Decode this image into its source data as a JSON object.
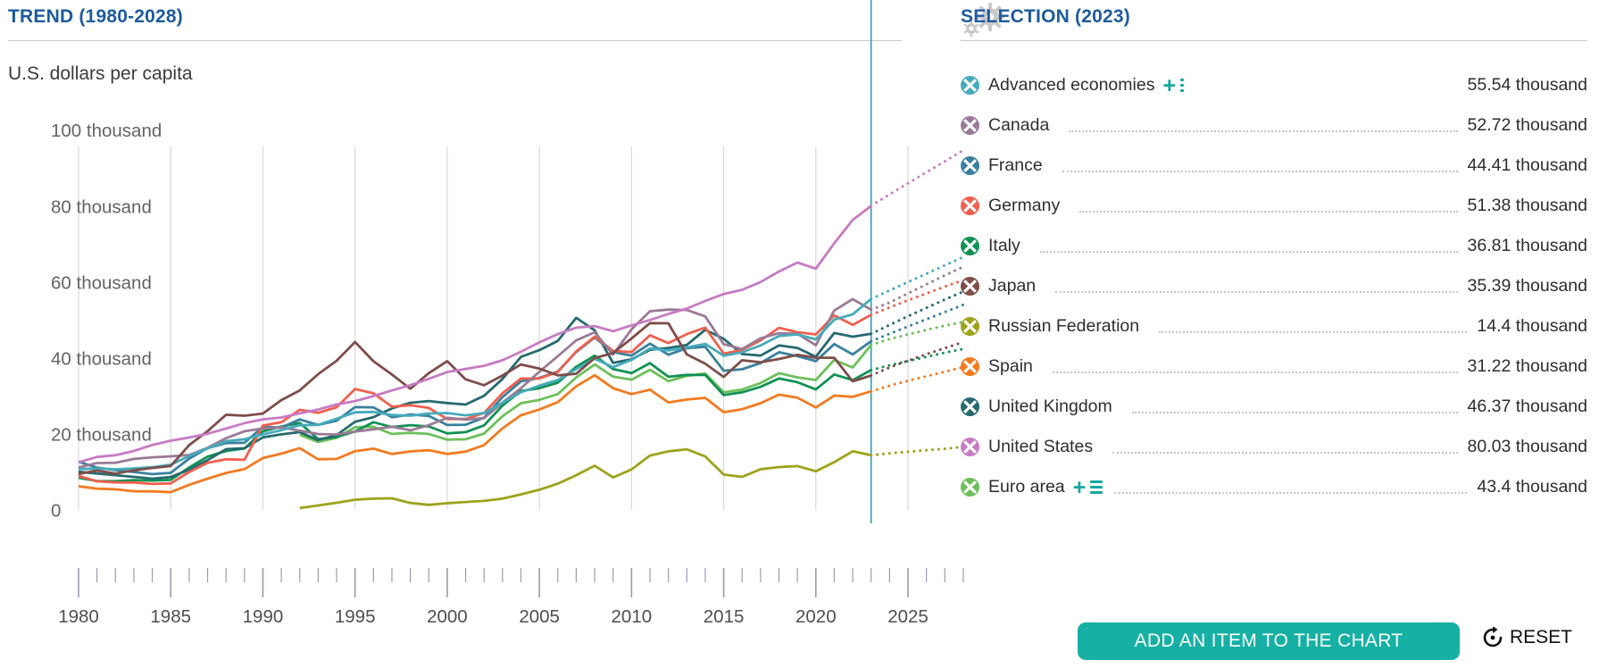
{
  "header": {
    "trend_title": "TREND (1980-2028)",
    "selection_title": "SELECTION (2023)",
    "unit_label": "U.S. dollars per capita"
  },
  "footer": {
    "add_button_label": "ADD AN ITEM TO THE CHART",
    "reset_label": "RESET"
  },
  "accent_colors": {
    "title_blue": "#1d5b9f",
    "teal_button": "#16b1a4",
    "current_year_line": "#2d9cbb",
    "gridline": "#d9d9d9",
    "tick": "#9b9bb0"
  },
  "selection": {
    "items": [
      {
        "name": "Advanced economies",
        "value": "55.54 thousand",
        "color": "#46abbc",
        "icons": [
          "plus",
          "kebab"
        ],
        "leader": false
      },
      {
        "name": "Canada",
        "value": "52.72 thousand",
        "color": "#9a7a96",
        "icons": [],
        "leader": true
      },
      {
        "name": "France",
        "value": "44.41 thousand",
        "color": "#39809e",
        "icons": [],
        "leader": true
      },
      {
        "name": "Germany",
        "value": "51.38 thousand",
        "color": "#f15f4f",
        "icons": [],
        "leader": true
      },
      {
        "name": "Italy",
        "value": "36.81 thousand",
        "color": "#109255",
        "icons": [],
        "leader": true
      },
      {
        "name": "Japan",
        "value": "35.39 thousand",
        "color": "#7e4e4a",
        "icons": [],
        "leader": true
      },
      {
        "name": "Russian Federation",
        "value": "14.4 thousand",
        "color": "#9ea31b",
        "icons": [],
        "leader": true
      },
      {
        "name": "Spain",
        "value": "31.22 thousand",
        "color": "#f47a1f",
        "icons": [],
        "leader": true
      },
      {
        "name": "United Kingdom",
        "value": "46.37 thousand",
        "color": "#266a6e",
        "icons": [],
        "leader": true
      },
      {
        "name": "United States",
        "value": "80.03 thousand",
        "color": "#c77bc3",
        "icons": [],
        "leader": true
      },
      {
        "name": "Euro area",
        "value": "43.4 thousand",
        "color": "#6dbf59",
        "icons": [
          "plus",
          "list"
        ],
        "leader": true
      }
    ]
  },
  "chart_data": {
    "type": "line",
    "title": "TREND (1980-2028)",
    "ylabel": "U.S. dollars per capita",
    "unit": "thousand U.S. dollars per capita",
    "ylim": [
      0,
      100
    ],
    "y_ticks": [
      100,
      80,
      60,
      40,
      20,
      0
    ],
    "y_tick_labels": [
      "100 thousand",
      "80 thousand",
      "60 thousand",
      "40 thousand",
      "20 thousand",
      "0"
    ],
    "x_range": [
      1980,
      2028
    ],
    "x_tick_labels": [
      1980,
      1985,
      1990,
      1995,
      2000,
      2005,
      2010,
      2015,
      2020,
      2025
    ],
    "gridline_years": [
      1980,
      1985,
      1990,
      1995,
      2000,
      2005,
      2010,
      2015,
      2020,
      2025
    ],
    "current_year": 2023,
    "forecast_note": "dotted lines after 2023 are projections to 2028",
    "series": [
      {
        "name": "Russian Federation",
        "color": "#9ea31b",
        "start_year": 1992,
        "values": [
          0.49,
          1.17,
          1.87,
          2.67,
          2.98,
          3.06,
          1.84,
          1.33,
          1.77,
          2.1,
          2.37,
          2.97,
          4.1,
          5.32,
          6.92,
          9.15,
          11.63,
          8.56,
          10.67,
          14.31,
          15.42,
          15.97,
          14.09,
          9.31,
          8.7,
          10.72,
          11.29,
          11.54,
          10.17,
          12.57,
          15.44,
          14.4,
          14.9,
          15.3,
          15.7,
          16.1,
          16.6
        ]
      },
      {
        "name": "Euro area",
        "color": "#6dbf59",
        "start_year": 1992,
        "values": [
          19.8,
          17.9,
          19.0,
          21.8,
          21.9,
          20.0,
          20.3,
          20.0,
          18.5,
          18.6,
          20.1,
          24.7,
          28.1,
          29.0,
          30.5,
          34.9,
          38.3,
          35.1,
          34.3,
          36.9,
          33.9,
          35.3,
          35.9,
          31.0,
          31.7,
          33.4,
          36.0,
          34.9,
          34.2,
          39.5,
          37.5,
          43.4,
          45.0,
          46.2,
          47.4,
          48.5,
          49.5
        ]
      },
      {
        "name": "Spain",
        "color": "#f47a1f",
        "start_year": 1980,
        "values": [
          6.23,
          5.59,
          5.42,
          4.92,
          4.89,
          4.68,
          6.61,
          8.23,
          9.74,
          10.74,
          13.65,
          14.81,
          16.26,
          13.34,
          13.42,
          15.47,
          16.12,
          14.73,
          15.39,
          15.72,
          14.75,
          15.36,
          17.07,
          21.5,
          24.92,
          26.42,
          28.39,
          32.55,
          35.45,
          32.04,
          30.5,
          31.68,
          28.32,
          29.06,
          29.5,
          25.73,
          26.52,
          28.1,
          30.35,
          29.56,
          26.96,
          30.1,
          29.8,
          31.22,
          32.7,
          34.0,
          35.2,
          36.4,
          37.6
        ]
      },
      {
        "name": "Italy",
        "color": "#109255",
        "start_year": 1980,
        "values": [
          8.46,
          7.62,
          7.56,
          7.85,
          7.74,
          7.91,
          11.2,
          14.03,
          15.53,
          16.17,
          20.69,
          21.96,
          22.91,
          18.65,
          19.18,
          20.66,
          23.08,
          21.83,
          22.32,
          21.99,
          20.14,
          20.48,
          22.27,
          27.47,
          31.32,
          32.04,
          33.5,
          37.7,
          40.64,
          37.08,
          36.03,
          38.65,
          35.05,
          35.55,
          35.56,
          30.23,
          30.97,
          32.41,
          34.62,
          33.63,
          31.71,
          35.66,
          34.16,
          36.81,
          38.1,
          39.2,
          40.3,
          41.4,
          42.4
        ]
      },
      {
        "name": "United Kingdom",
        "color": "#266a6e",
        "start_year": 1980,
        "values": [
          10.03,
          9.6,
          9.15,
          8.69,
          8.22,
          8.65,
          10.61,
          13.12,
          15.99,
          16.24,
          19.1,
          19.9,
          20.49,
          18.39,
          19.71,
          23.21,
          24.44,
          26.73,
          28.21,
          28.67,
          28.15,
          27.75,
          30.06,
          34.5,
          40.29,
          42.07,
          44.5,
          50.57,
          47.29,
          38.71,
          39.69,
          42.15,
          42.66,
          43.45,
          47.42,
          45.04,
          41.06,
          40.62,
          43.31,
          42.66,
          40.32,
          46.59,
          45.61,
          46.37,
          48.7,
          51.0,
          53.2,
          55.4,
          57.5
        ]
      },
      {
        "name": "France",
        "color": "#39809e",
        "start_year": 1980,
        "values": [
          12.72,
          11.13,
          10.48,
          9.99,
          9.42,
          9.76,
          13.51,
          16.27,
          17.6,
          17.69,
          21.87,
          21.68,
          23.81,
          22.38,
          23.5,
          27.06,
          26.99,
          24.4,
          25.13,
          24.76,
          22.36,
          22.43,
          24.28,
          29.69,
          33.86,
          34.76,
          36.44,
          41.6,
          45.41,
          41.57,
          40.64,
          43.79,
          40.87,
          42.59,
          42.95,
          36.65,
          37.04,
          38.69,
          41.53,
          40.49,
          39.18,
          43.66,
          40.93,
          44.41,
          46.4,
          48.3,
          50.2,
          52.1,
          54.0
        ]
      },
      {
        "name": "Germany",
        "color": "#f15f4f",
        "start_year": 1980,
        "values": [
          8.95,
          7.52,
          7.25,
          7.22,
          6.84,
          6.99,
          9.99,
          12.41,
          13.34,
          13.2,
          22.22,
          23.08,
          26.36,
          25.56,
          27.05,
          31.83,
          30.71,
          27.19,
          27.55,
          26.86,
          23.93,
          23.94,
          25.53,
          30.73,
          34.58,
          34.61,
          36.32,
          41.74,
          45.61,
          41.86,
          41.57,
          46.0,
          43.93,
          46.3,
          48.02,
          41.14,
          42.12,
          44.64,
          47.94,
          46.79,
          46.21,
          51.2,
          48.72,
          51.38,
          53.3,
          55.2,
          57.0,
          58.8,
          60.5
        ]
      },
      {
        "name": "Canada",
        "color": "#9a7a96",
        "start_year": 1980,
        "values": [
          11.17,
          12.34,
          12.42,
          13.43,
          13.84,
          14.11,
          14.46,
          16.37,
          18.88,
          20.72,
          21.45,
          21.76,
          20.88,
          19.98,
          19.85,
          20.61,
          21.23,
          21.9,
          20.97,
          22.31,
          24.25,
          23.77,
          24.17,
          28.23,
          32.04,
          36.38,
          40.5,
          44.66,
          46.8,
          40.88,
          47.56,
          52.31,
          52.74,
          52.64,
          50.96,
          43.63,
          42.37,
          45.19,
          46.55,
          46.4,
          43.35,
          52.5,
          55.52,
          52.72,
          54.6,
          57.0,
          59.4,
          61.8,
          64.0
        ]
      },
      {
        "name": "Advanced economies",
        "color": "#46abbc",
        "start_year": 1980,
        "values": [
          10.75,
          10.9,
          10.7,
          10.93,
          11.25,
          11.9,
          14.2,
          16.2,
          18.1,
          18.6,
          19.9,
          21.0,
          22.3,
          22.4,
          24.0,
          25.7,
          25.8,
          25.0,
          24.8,
          25.4,
          25.5,
          24.9,
          25.5,
          28.2,
          31.0,
          32.7,
          34.2,
          37.1,
          39.8,
          37.6,
          39.5,
          42.5,
          42.0,
          42.8,
          43.7,
          40.6,
          41.5,
          43.3,
          45.8,
          46.2,
          44.9,
          50.1,
          51.5,
          55.54,
          57.8,
          60.0,
          62.2,
          64.4,
          66.6
        ]
      },
      {
        "name": "Japan",
        "color": "#7e4e4a",
        "start_year": 1980,
        "values": [
          9.47,
          10.36,
          9.58,
          10.45,
          11.06,
          11.58,
          17.08,
          20.75,
          25.06,
          24.81,
          25.37,
          28.93,
          31.46,
          35.77,
          39.27,
          44.21,
          39.16,
          35.64,
          31.9,
          36.03,
          39.17,
          34.41,
          32.82,
          35.39,
          38.31,
          37.22,
          35.43,
          35.85,
          39.99,
          41.31,
          45.14,
          49.18,
          49.15,
          40.93,
          38.52,
          35.0,
          39.41,
          38.89,
          39.73,
          40.85,
          40.06,
          40.06,
          33.85,
          35.39,
          37.5,
          39.3,
          41.0,
          42.6,
          44.2
        ]
      },
      {
        "name": "United States",
        "color": "#c77bc3",
        "start_year": 1980,
        "values": [
          12.55,
          13.95,
          14.41,
          15.53,
          17.12,
          18.23,
          19.07,
          20.06,
          21.42,
          22.86,
          23.85,
          24.34,
          25.42,
          26.44,
          27.76,
          28.67,
          29.97,
          31.46,
          32.85,
          34.51,
          36.31,
          37.13,
          37.95,
          39.41,
          41.64,
          44.12,
          46.3,
          47.98,
          48.38,
          47.05,
          48.59,
          50.01,
          51.58,
          53.03,
          55.02,
          56.86,
          57.95,
          60.0,
          62.79,
          65.12,
          63.53,
          70.22,
          76.35,
          80.03,
          83.1,
          86.0,
          88.9,
          91.8,
          94.7
        ]
      }
    ]
  }
}
